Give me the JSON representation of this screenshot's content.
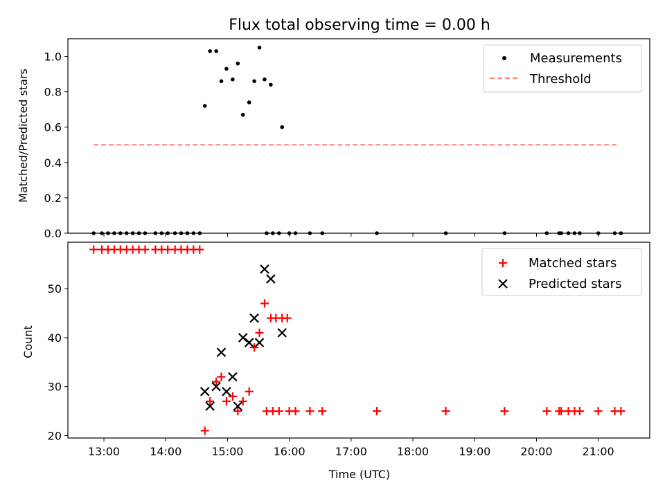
{
  "chart_data": [
    {
      "type": "scatter",
      "title": "Flux total observing time = 0.00 h",
      "xlabel": "",
      "ylabel": "Matched/Predicted stars",
      "xlim": [
        "12:25",
        "21:50"
      ],
      "ylim": [
        0,
        1.1
      ],
      "yticks": [
        "0.0",
        "0.2",
        "0.4",
        "0.6",
        "0.8",
        "1.0"
      ],
      "grid": false,
      "legend_position": "top-right",
      "series": [
        {
          "name": "Measurements",
          "marker": "dot",
          "color": "#000000",
          "points": [
            [
              "12:50",
              0
            ],
            [
              "12:58",
              0
            ],
            [
              "13:04",
              0
            ],
            [
              "13:10",
              0
            ],
            [
              "13:16",
              0
            ],
            [
              "13:22",
              0
            ],
            [
              "13:28",
              0
            ],
            [
              "13:34",
              0
            ],
            [
              "13:40",
              0
            ],
            [
              "13:50",
              0
            ],
            [
              "13:56",
              0
            ],
            [
              "14:02",
              0
            ],
            [
              "14:09",
              0
            ],
            [
              "14:15",
              0
            ],
            [
              "14:21",
              0
            ],
            [
              "14:27",
              0
            ],
            [
              "14:33",
              0
            ],
            [
              "14:38",
              0.72
            ],
            [
              "14:43",
              1.03
            ],
            [
              "14:49",
              1.03
            ],
            [
              "14:54",
              0.86
            ],
            [
              "14:59",
              0.93
            ],
            [
              "15:05",
              0.87
            ],
            [
              "15:10",
              0.96
            ],
            [
              "15:15",
              0.67
            ],
            [
              "15:21",
              0.74
            ],
            [
              "15:26",
              0.86
            ],
            [
              "15:31",
              1.05
            ],
            [
              "15:36",
              0.87
            ],
            [
              "15:42",
              0.84
            ],
            [
              "15:53",
              0.6
            ],
            [
              "15:38",
              0
            ],
            [
              "15:44",
              0
            ],
            [
              "15:50",
              0
            ],
            [
              "16:00",
              0
            ],
            [
              "16:06",
              0
            ],
            [
              "16:20",
              0
            ],
            [
              "16:32",
              0
            ],
            [
              "17:25",
              0
            ],
            [
              "18:32",
              0
            ],
            [
              "19:29",
              0
            ],
            [
              "20:10",
              0
            ],
            [
              "20:22",
              0
            ],
            [
              "20:24",
              0
            ],
            [
              "20:31",
              0
            ],
            [
              "20:37",
              0
            ],
            [
              "20:42",
              0
            ],
            [
              "21:00",
              0
            ],
            [
              "21:16",
              0
            ],
            [
              "21:22",
              0
            ]
          ]
        },
        {
          "name": "Threshold",
          "marker": "dashed-line",
          "color": "#ff7f7f",
          "points": [
            [
              "12:50",
              0.5
            ],
            [
              "21:20",
              0.5
            ]
          ]
        }
      ]
    },
    {
      "type": "scatter",
      "title": "",
      "xlabel": "Time (UTC)",
      "ylabel": "Count",
      "xlim": [
        "12:25",
        "21:50"
      ],
      "ylim": [
        19.5,
        59.5
      ],
      "yticks": [
        "20",
        "30",
        "40",
        "50"
      ],
      "xticks": [
        "13:00",
        "14:00",
        "15:00",
        "16:00",
        "17:00",
        "18:00",
        "19:00",
        "20:00",
        "21:00"
      ],
      "grid": false,
      "legend_position": "top-right",
      "series": [
        {
          "name": "Matched stars",
          "marker": "plus",
          "color": "#ff0000",
          "points": [
            [
              "12:50",
              58
            ],
            [
              "12:58",
              58
            ],
            [
              "13:04",
              58
            ],
            [
              "13:10",
              58
            ],
            [
              "13:16",
              58
            ],
            [
              "13:22",
              58
            ],
            [
              "13:28",
              58
            ],
            [
              "13:34",
              58
            ],
            [
              "13:40",
              58
            ],
            [
              "13:50",
              58
            ],
            [
              "13:56",
              58
            ],
            [
              "14:02",
              58
            ],
            [
              "14:09",
              58
            ],
            [
              "14:15",
              58
            ],
            [
              "14:21",
              58
            ],
            [
              "14:27",
              58
            ],
            [
              "14:33",
              58
            ],
            [
              "14:38",
              21
            ],
            [
              "14:43",
              27
            ],
            [
              "14:49",
              31
            ],
            [
              "14:54",
              32
            ],
            [
              "14:59",
              27
            ],
            [
              "15:05",
              28
            ],
            [
              "15:10",
              25
            ],
            [
              "15:15",
              27
            ],
            [
              "15:21",
              29
            ],
            [
              "15:26",
              38
            ],
            [
              "15:31",
              41
            ],
            [
              "15:36",
              47
            ],
            [
              "15:42",
              44
            ],
            [
              "15:47",
              44
            ],
            [
              "15:53",
              44
            ],
            [
              "15:58",
              44
            ],
            [
              "15:38",
              25
            ],
            [
              "15:44",
              25
            ],
            [
              "15:50",
              25
            ],
            [
              "16:00",
              25
            ],
            [
              "16:06",
              25
            ],
            [
              "16:20",
              25
            ],
            [
              "16:32",
              25
            ],
            [
              "17:25",
              25
            ],
            [
              "18:32",
              25
            ],
            [
              "19:29",
              25
            ],
            [
              "20:10",
              25
            ],
            [
              "20:22",
              25
            ],
            [
              "20:24",
              25
            ],
            [
              "20:31",
              25
            ],
            [
              "20:37",
              25
            ],
            [
              "20:42",
              25
            ],
            [
              "21:00",
              25
            ],
            [
              "21:16",
              25
            ],
            [
              "21:22",
              25
            ]
          ]
        },
        {
          "name": "Predicted stars",
          "marker": "x",
          "color": "#000000",
          "points": [
            [
              "14:38",
              29
            ],
            [
              "14:43",
              26
            ],
            [
              "14:49",
              30
            ],
            [
              "14:54",
              37
            ],
            [
              "14:59",
              29
            ],
            [
              "15:05",
              32
            ],
            [
              "15:10",
              26
            ],
            [
              "15:15",
              40
            ],
            [
              "15:21",
              39
            ],
            [
              "15:26",
              44
            ],
            [
              "15:31",
              39
            ],
            [
              "15:36",
              54
            ],
            [
              "15:42",
              52
            ],
            [
              "15:53",
              41
            ]
          ]
        }
      ]
    }
  ]
}
